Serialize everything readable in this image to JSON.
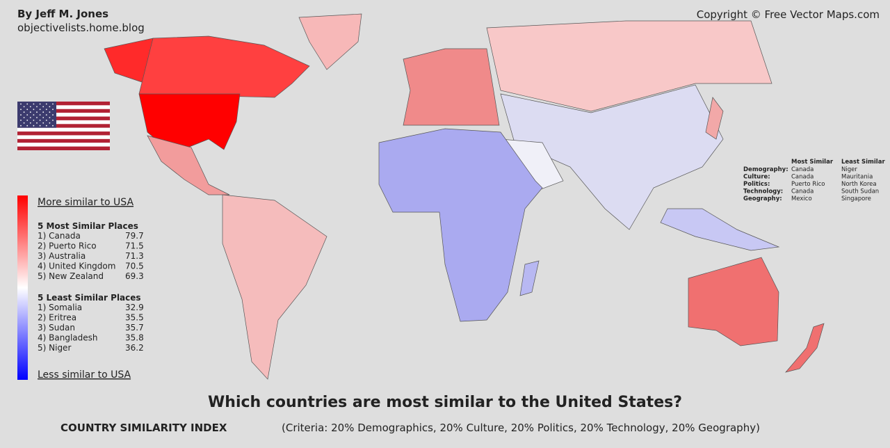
{
  "header": {
    "author": "By Jeff M. Jones",
    "site": "objectivelists.home.blog",
    "copyright": "Copyright © Free Vector Maps.com"
  },
  "legend": {
    "top": "More similar to USA",
    "bottom": "Less similar to USA",
    "most_title": "5 Most Similar Places",
    "most": [
      {
        "label": "1) Canada",
        "value": 79.7
      },
      {
        "label": "2) Puerto Rico",
        "value": 71.5
      },
      {
        "label": "3) Australia",
        "value": 71.3
      },
      {
        "label": "4) United Kingdom",
        "value": 70.5
      },
      {
        "label": "5) New Zealand",
        "value": 69.3
      }
    ],
    "least_title": "5 Least Similar Places",
    "least": [
      {
        "label": "1) Somalia",
        "value": 32.9
      },
      {
        "label": "2) Eritrea",
        "value": 35.5
      },
      {
        "label": "3) Sudan",
        "value": 35.7
      },
      {
        "label": "4) Bangladesh",
        "value": 35.8
      },
      {
        "label": "5) Niger",
        "value": 36.2
      }
    ]
  },
  "category_table": {
    "headers": [
      "Most Similar",
      "Least Similar"
    ],
    "rows": [
      [
        "Demography:",
        "Canada",
        "Niger"
      ],
      [
        "Culture:",
        "Canada",
        "Mauritania"
      ],
      [
        "Politics:",
        "Puerto Rico",
        "North Korea"
      ],
      [
        "Technology:",
        "Canada",
        "South Sudan"
      ],
      [
        "Geography:",
        "Mexico",
        "Singapore"
      ]
    ]
  },
  "title": "Which countries are most similar to the United States?",
  "subtitle": "COUNTRY SIMILARITY INDEX",
  "criteria": "(Criteria: 20% Demographics, 20% Culture, 20% Politics, 20% Technology, 20% Geography)"
}
